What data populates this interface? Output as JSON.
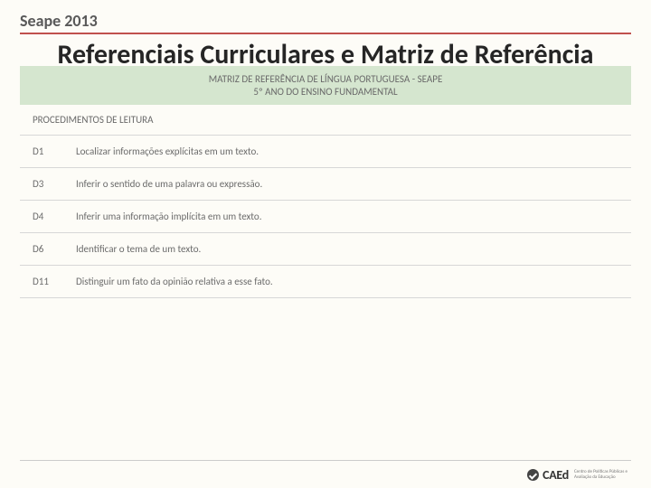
{
  "header": {
    "title": "Seape 2013"
  },
  "main_title": "Referenciais Curriculares e Matriz de Referência",
  "matrix": {
    "header_line1": "MATRIZ DE REFERÊNCIA DE LÍNGUA PORTUGUESA - SEAPE",
    "header_line2": "5º ANO DO ENSINO FUNDAMENTAL",
    "section_label": "PROCEDIMENTOS DE LEITURA",
    "rows": [
      {
        "code": "D1",
        "desc": "Localizar informações explícitas em um texto."
      },
      {
        "code": "D3",
        "desc": "Inferir o sentido de uma palavra ou expressão."
      },
      {
        "code": "D4",
        "desc": "Inferir uma informação implícita em um texto."
      },
      {
        "code": "D6",
        "desc": "Identificar o tema de um texto."
      },
      {
        "code": "D11",
        "desc": "Distinguir um fato da opinião relativa a esse fato."
      }
    ]
  },
  "footer": {
    "brand": "CAEd",
    "subtext1": "Centro de Políticas Públicas e",
    "subtext2": "Avaliação da Educação"
  },
  "colors": {
    "background": "#fdfcf7",
    "accent_line": "#c0504d",
    "matrix_header_bg": "#d5e6cf",
    "border": "#d7d7d7",
    "text_dark": "#262626",
    "text_gray": "#6b6b6b",
    "header_gray": "#595959"
  },
  "typography": {
    "header_fontsize": 18,
    "main_title_fontsize": 30,
    "body_fontsize": 11,
    "footer_brand_fontsize": 14
  }
}
